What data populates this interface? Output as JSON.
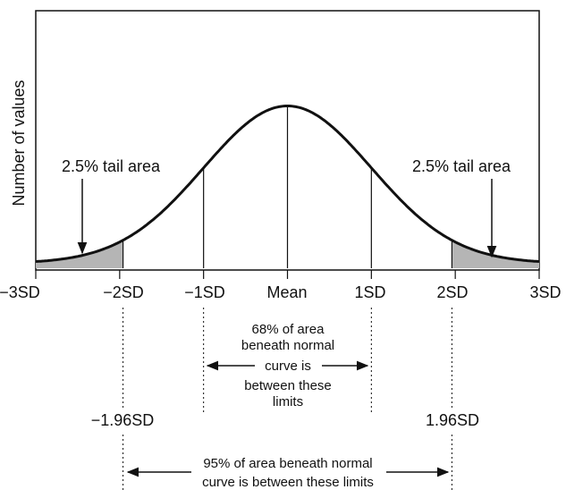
{
  "chart_data": {
    "type": "line",
    "title": "",
    "xlabel": "",
    "ylabel": "Number of values",
    "x_ticks": [
      {
        "x": -3,
        "label": "−3SD"
      },
      {
        "x": -2,
        "label": "−2SD"
      },
      {
        "x": -1,
        "label": "−1SD"
      },
      {
        "x": 0,
        "label": "Mean"
      },
      {
        "x": 1,
        "label": "1SD"
      },
      {
        "x": 2,
        "label": "2SD"
      },
      {
        "x": 3,
        "label": "3SD"
      }
    ],
    "xlim": [
      -3,
      3
    ],
    "curve": "normal",
    "mean": 0,
    "sd": 1,
    "vertical_lines": [
      -1,
      0,
      1
    ],
    "shaded_tails": [
      -1.96,
      1.96
    ],
    "grid": false,
    "left_tail_label": "2.5% tail area",
    "right_tail_label": "2.5% tail area",
    "left_cutoff_label": "−1.96SD",
    "right_cutoff_label": "1.96SD",
    "inner_annotation": [
      "68% of area",
      "beneath normal",
      "curve is",
      "between these",
      "limits"
    ],
    "outer_annotation": [
      "95% of area beneath normal",
      "curve is between these limits"
    ],
    "colors": {
      "shade": "#b5b5b5",
      "line": "#111111"
    }
  }
}
